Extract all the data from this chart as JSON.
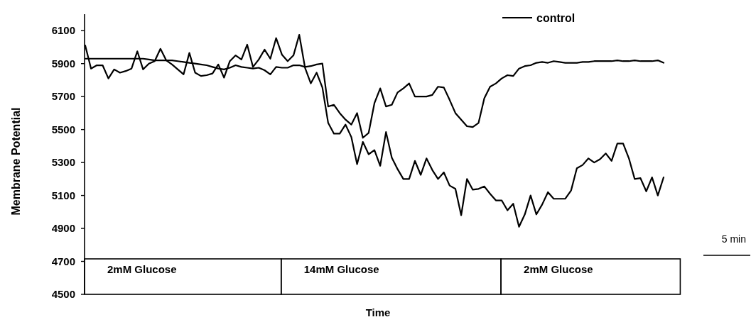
{
  "chart_data": {
    "type": "line",
    "xlabel": "Time",
    "ylabel": "Membrane Potential",
    "categories": [
      null,
      null,
      null,
      null,
      null,
      null,
      null,
      null,
      null,
      null,
      null,
      null,
      null,
      null,
      null,
      null,
      null,
      null,
      null,
      null,
      null,
      null,
      null,
      null,
      null,
      null,
      null,
      null,
      null,
      null,
      null,
      null,
      null,
      null,
      null,
      null,
      null,
      null,
      null,
      null,
      null,
      null,
      null,
      null,
      null,
      null,
      null,
      null,
      null,
      null,
      null,
      null,
      null,
      null,
      null,
      null,
      null,
      null,
      null,
      null,
      null,
      null,
      null,
      null,
      null,
      null,
      null,
      null,
      null,
      null,
      null,
      null,
      null,
      null,
      null,
      null,
      null,
      null,
      null,
      null,
      null,
      null,
      null,
      null,
      null,
      null,
      null,
      null,
      null,
      null,
      null,
      null,
      null,
      null,
      null,
      null,
      null,
      null,
      null,
      null,
      null
    ],
    "series": [
      {
        "name": "control",
        "color": "#000000",
        "values": [
          5930,
          5930,
          5930,
          5930,
          5930,
          5930,
          5930,
          5930,
          5930,
          5930,
          5930,
          5925,
          5920,
          5920,
          5920,
          5920,
          5915,
          5910,
          5905,
          5900,
          5895,
          5890,
          5880,
          5870,
          5865,
          5875,
          5890,
          5880,
          5875,
          5870,
          5875,
          5860,
          5835,
          5880,
          5875,
          5875,
          5890,
          5890,
          5880,
          5885,
          5895,
          5900,
          5640,
          5650,
          5600,
          5560,
          5530,
          5600,
          5450,
          5480,
          5660,
          5750,
          5640,
          5650,
          5725,
          5750,
          5780,
          5700,
          5700,
          5700,
          5710,
          5760,
          5755,
          5680,
          5600,
          5560,
          5520,
          5515,
          5540,
          5690,
          5760,
          5780,
          5810,
          5830,
          5825,
          5870,
          5885,
          5890,
          5905,
          5910,
          5905,
          5915,
          5910,
          5905,
          5905,
          5905,
          5910,
          5910,
          5915,
          5915,
          5915,
          5915,
          5920,
          5915,
          5915,
          5920,
          5915,
          5915,
          5915,
          5920,
          5905
        ]
      },
      {
        "color": "#000000",
        "values": [
          6010,
          5870,
          5890,
          5890,
          5810,
          5865,
          5845,
          5855,
          5870,
          5975,
          5865,
          5900,
          5915,
          5990,
          5920,
          5895,
          5865,
          5835,
          5965,
          5845,
          5825,
          5830,
          5840,
          5895,
          5815,
          5915,
          5950,
          5925,
          6015,
          5880,
          5925,
          5985,
          5930,
          6055,
          5955,
          5915,
          5950,
          6075,
          5875,
          5780,
          5845,
          5755,
          5540,
          5475,
          5475,
          5530,
          5455,
          5290,
          5425,
          5350,
          5375,
          5280,
          5485,
          5330,
          5260,
          5200,
          5200,
          5310,
          5225,
          5325,
          5255,
          5200,
          5240,
          5160,
          5140,
          4980,
          5200,
          5135,
          5140,
          5155,
          5110,
          5070,
          5070,
          5010,
          5050,
          4910,
          4985,
          5100,
          4985,
          5045,
          5120,
          5080,
          5080,
          5080,
          5130,
          5265,
          5285,
          5325,
          5300,
          5320,
          5355,
          5310,
          5415,
          5415,
          5325,
          5200,
          5205,
          5125,
          5210,
          5100,
          5210
        ]
      }
    ],
    "ylim": [
      4500,
      6200
    ],
    "yticks": [
      4500,
      4700,
      4900,
      5100,
      5300,
      5500,
      5700,
      5900,
      6100
    ],
    "annotations": [
      "2mM Glucose",
      "14mM Glucose",
      "2mM Glucose",
      "5 min"
    ],
    "legend": "top right",
    "grid": false,
    "tick_labels": "y"
  }
}
